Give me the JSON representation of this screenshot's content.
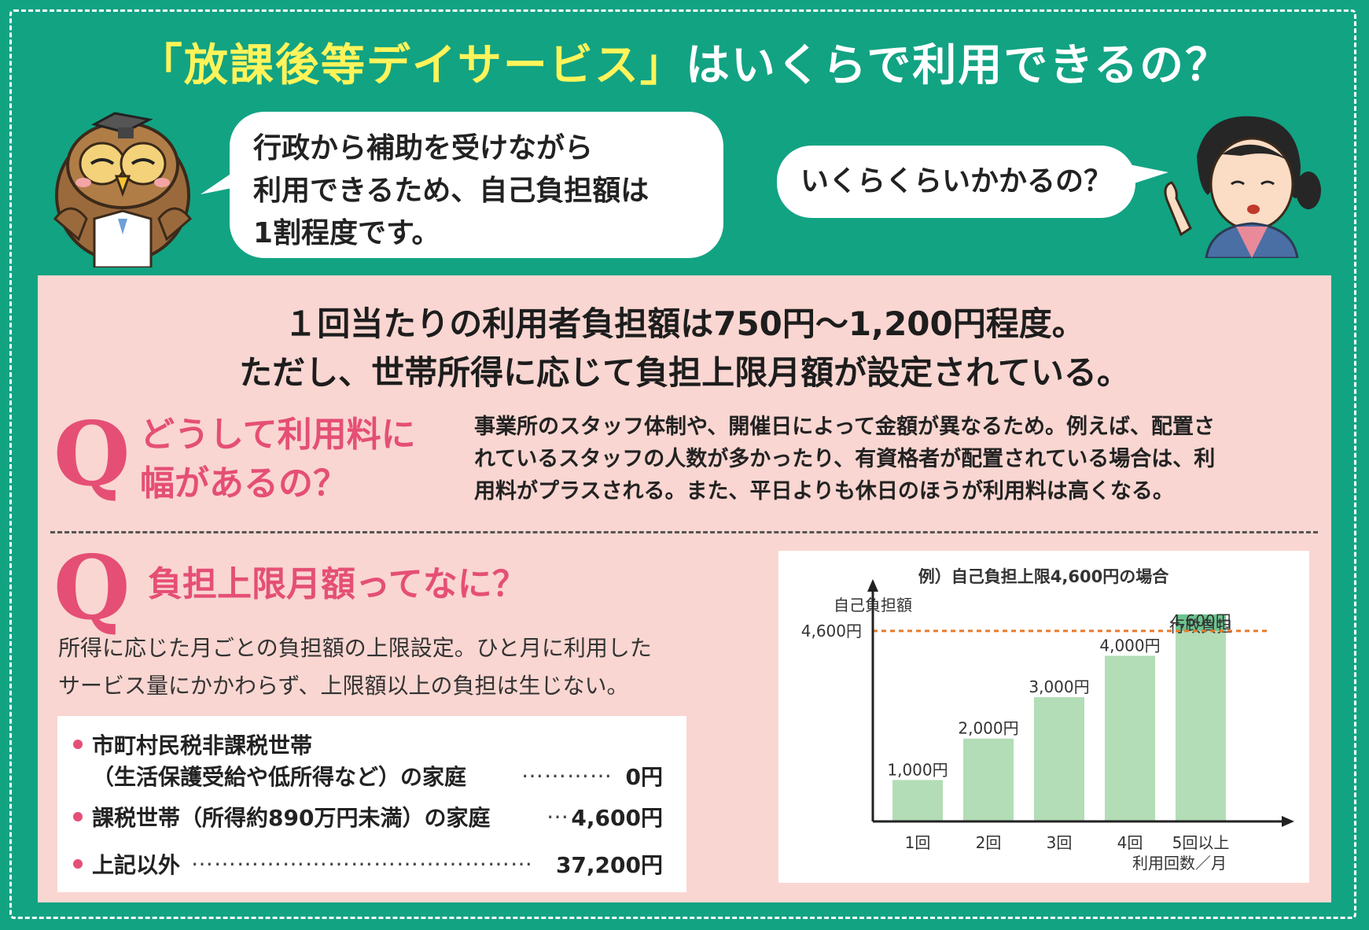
{
  "title": {
    "highlight": "「放課後等デイサービス」",
    "rest": "はいくらで利用できるの？"
  },
  "owl_bubble": {
    "lines": [
      "行政から補助を受けながら",
      "利用できるため、自己負担額は",
      "1割程度です。"
    ]
  },
  "woman_bubble": {
    "text": "いくらくらいかかるの？"
  },
  "lead": {
    "line1": "１回当たりの利用者負担額は750円～1,200円程度。",
    "line2": "ただし、世帯所得に応じて負担上限月額が設定されている。"
  },
  "q1": {
    "mark": "Q",
    "title_line1": "どうして利用料に",
    "title_line2": "幅があるの？",
    "body_line1": "事業所のスタッフ体制や、開催日によって金額が異なるため。例えば、配置さ",
    "body_line2": "れているスタッフの人数が多かったり、有資格者が配置されている場合は、利",
    "body_line3": "用料がプラスされる。また、平日よりも休日のほうが利用料は高くなる。"
  },
  "q2": {
    "mark": "Q",
    "title": "負担上限月額ってなに？",
    "desc_line1": "所得に応じた月ごとの負担額の上限設定。ひと月に利用した",
    "desc_line2": "サービス量にかかわらず、上限額以上の負担は生じない。",
    "cases": [
      {
        "label_line1": "市町村民税非課税世帯",
        "label_line2": "（生活保護受給や低所得など）の家庭",
        "leader": "…………",
        "value": "0円"
      },
      {
        "label": "課税世帯（所得約890万円未満）の家庭",
        "leader": "…",
        "value": "4,600円"
      },
      {
        "label": "上記以外",
        "leader": "………………………………………",
        "value": "37,200円"
      }
    ]
  },
  "chart_data": {
    "type": "bar",
    "title": "例）自己負担上限4,600円の場合",
    "ylabel": "自己負担額",
    "xlabel": "利用回数／月",
    "categories": [
      "1回",
      "2回",
      "3回",
      "4回",
      "5回以上"
    ],
    "values": [
      1000,
      2000,
      3000,
      4000,
      4600
    ],
    "data_labels": [
      "1,000円",
      "2,000円",
      "3,000円",
      "4,000円",
      "4,600円"
    ],
    "excess_segment": {
      "category": "5回以上",
      "from": 4600,
      "to": 5000,
      "label": "行政負担"
    },
    "reference_line": {
      "value": 4600,
      "label": "4,600円"
    },
    "ylim": [
      0,
      5700
    ],
    "bar_color": "#b3ddb6",
    "excess_color": "#6cc38f",
    "line_color": "#e87a2c"
  }
}
